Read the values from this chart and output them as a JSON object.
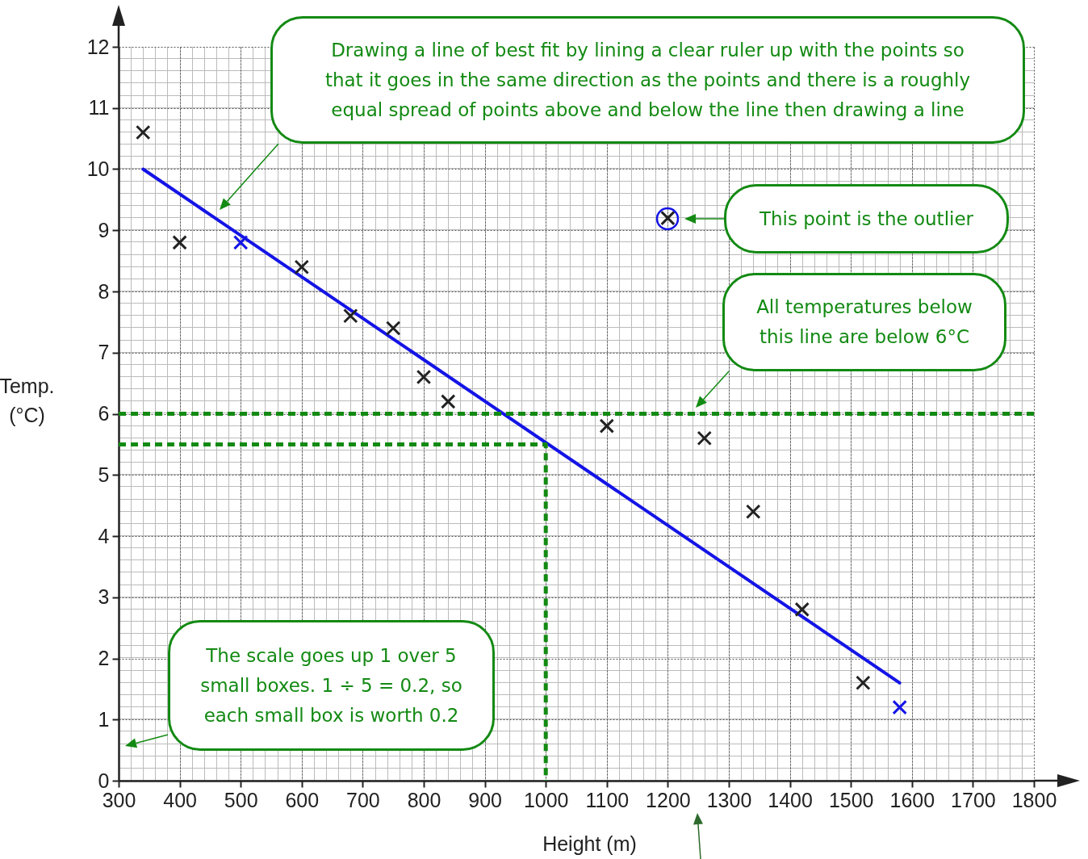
{
  "chart_data": {
    "type": "scatter",
    "xlabel": "Height (m)",
    "ylabel": "Temp. (°C)",
    "xlim": [
      300,
      1800
    ],
    "ylim": [
      0,
      12
    ],
    "xticks": [
      300,
      400,
      500,
      600,
      700,
      800,
      900,
      1000,
      1100,
      1200,
      1300,
      1400,
      1500,
      1600,
      1700,
      1800
    ],
    "yticks": [
      0,
      1,
      2,
      3,
      4,
      5,
      6,
      7,
      8,
      9,
      10,
      11,
      12
    ],
    "grid": true,
    "marker": "cross",
    "series": [
      {
        "x": [
          340,
          400,
          500,
          600,
          680,
          750,
          800,
          840,
          1100,
          1200,
          1260,
          1340,
          1420,
          1520,
          1580
        ],
        "values": [
          10.6,
          8.8,
          8.8,
          8.4,
          7.6,
          7.4,
          6.6,
          6.2,
          5.8,
          9.2,
          5.6,
          4.4,
          2.8,
          1.6,
          1.2
        ],
        "colors": [
          "#222222",
          "#222222",
          "#1414e6",
          "#222222",
          "#222222",
          "#222222",
          "#222222",
          "#222222",
          "#222222",
          "#222222",
          "#222222",
          "#222222",
          "#222222",
          "#222222",
          "#1414e6"
        ]
      },
      {
        "type": "line",
        "x": [
          340,
          1580
        ],
        "values": [
          10,
          1.6
        ],
        "color": "#1414e6",
        "line_style": "solid",
        "marker": "none"
      },
      {
        "type": "line",
        "x": [
          300,
          1000,
          1000
        ],
        "values": [
          5.5,
          5.5,
          0
        ],
        "color": "#138a13",
        "line_style": "dashed",
        "marker": "none"
      }
    ],
    "ref_lines": [
      {
        "axis": "y",
        "value": 6,
        "color": "#138a13",
        "line_style": "dashed"
      }
    ],
    "annotations": [
      "Drawing a line of best fit by lining a clear ruler up with the points so that it goes in the same direction as the points and there is a roughly equal spread of points above and below the line then drawing a line",
      "This point is the outlier",
      "All temperatures below this line are below 6°C",
      "The scale goes up 1 over 5 small boxes. 1 ÷ 5 = 0.2, so each small box is worth 0.2"
    ]
  }
}
